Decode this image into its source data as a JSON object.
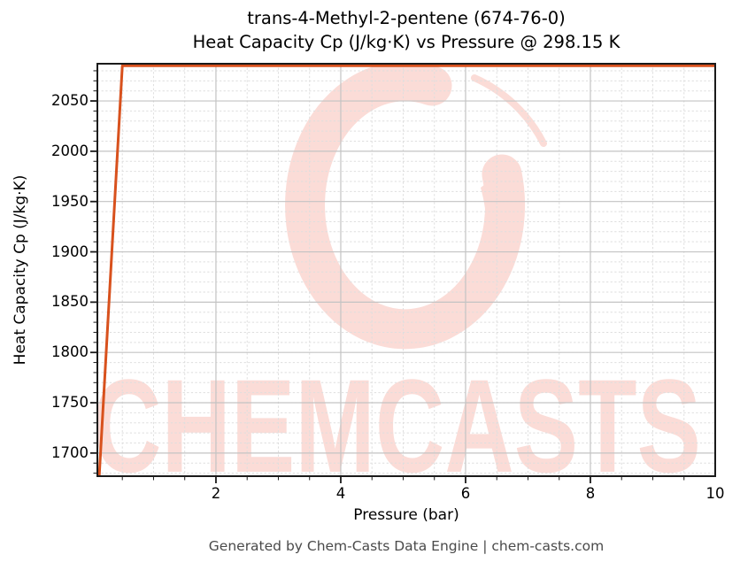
{
  "title": {
    "line1": "trans-4-Methyl-2-pentene (674-76-0)",
    "line2": "Heat Capacity Cp (J/kg·K) vs Pressure @ 298.15 K"
  },
  "footer": {
    "text": "Generated by Chem-Casts Data Engine | chem-casts.com"
  },
  "watermark": {
    "text": "CHEMCASTS",
    "logo": "brush-stroke-c-ring",
    "color": "#fbdcd7"
  },
  "colors": {
    "line": "#d8511d",
    "grid_major": "#c3c3c3",
    "grid_minor": "#dedede",
    "spine": "#1a1a1a"
  },
  "chart_data": {
    "type": "line",
    "title": "trans-4-Methyl-2-pentene (674-76-0)\nHeat Capacity Cp (J/kg·K) vs Pressure @ 298.15 K",
    "xlabel": "Pressure (bar)",
    "ylabel": "Heat Capacity Cp (J/kg·K)",
    "xlim": [
      0.1,
      10
    ],
    "ylim": [
      1677,
      2087
    ],
    "xticks": [
      2,
      4,
      6,
      8,
      10
    ],
    "yticks": [
      1700,
      1750,
      1800,
      1850,
      1900,
      1950,
      2000,
      2050
    ],
    "x_minor_step": 0.5,
    "y_minor_step": 10,
    "grid": "major solid, minor dashed",
    "legend": "none",
    "series": [
      {
        "name": "Heat Capacity Cp vs Pressure @ 298.15 K",
        "color": "#d8511d",
        "points": [
          [
            0.13,
            1677
          ],
          [
            0.25,
            1810
          ],
          [
            0.38,
            1952
          ],
          [
            0.5,
            2085
          ],
          [
            1,
            2085
          ],
          [
            2,
            2085
          ],
          [
            4,
            2085
          ],
          [
            6,
            2085
          ],
          [
            8,
            2085
          ],
          [
            10,
            2085
          ]
        ]
      }
    ],
    "annotations": [
      "curve rises steeply from ~1677 J/kg·K near 0.1 bar to ~2085 J/kg·K by ~0.5 bar, then stays constant (flat along top of axes) out to 10 bar"
    ]
  }
}
